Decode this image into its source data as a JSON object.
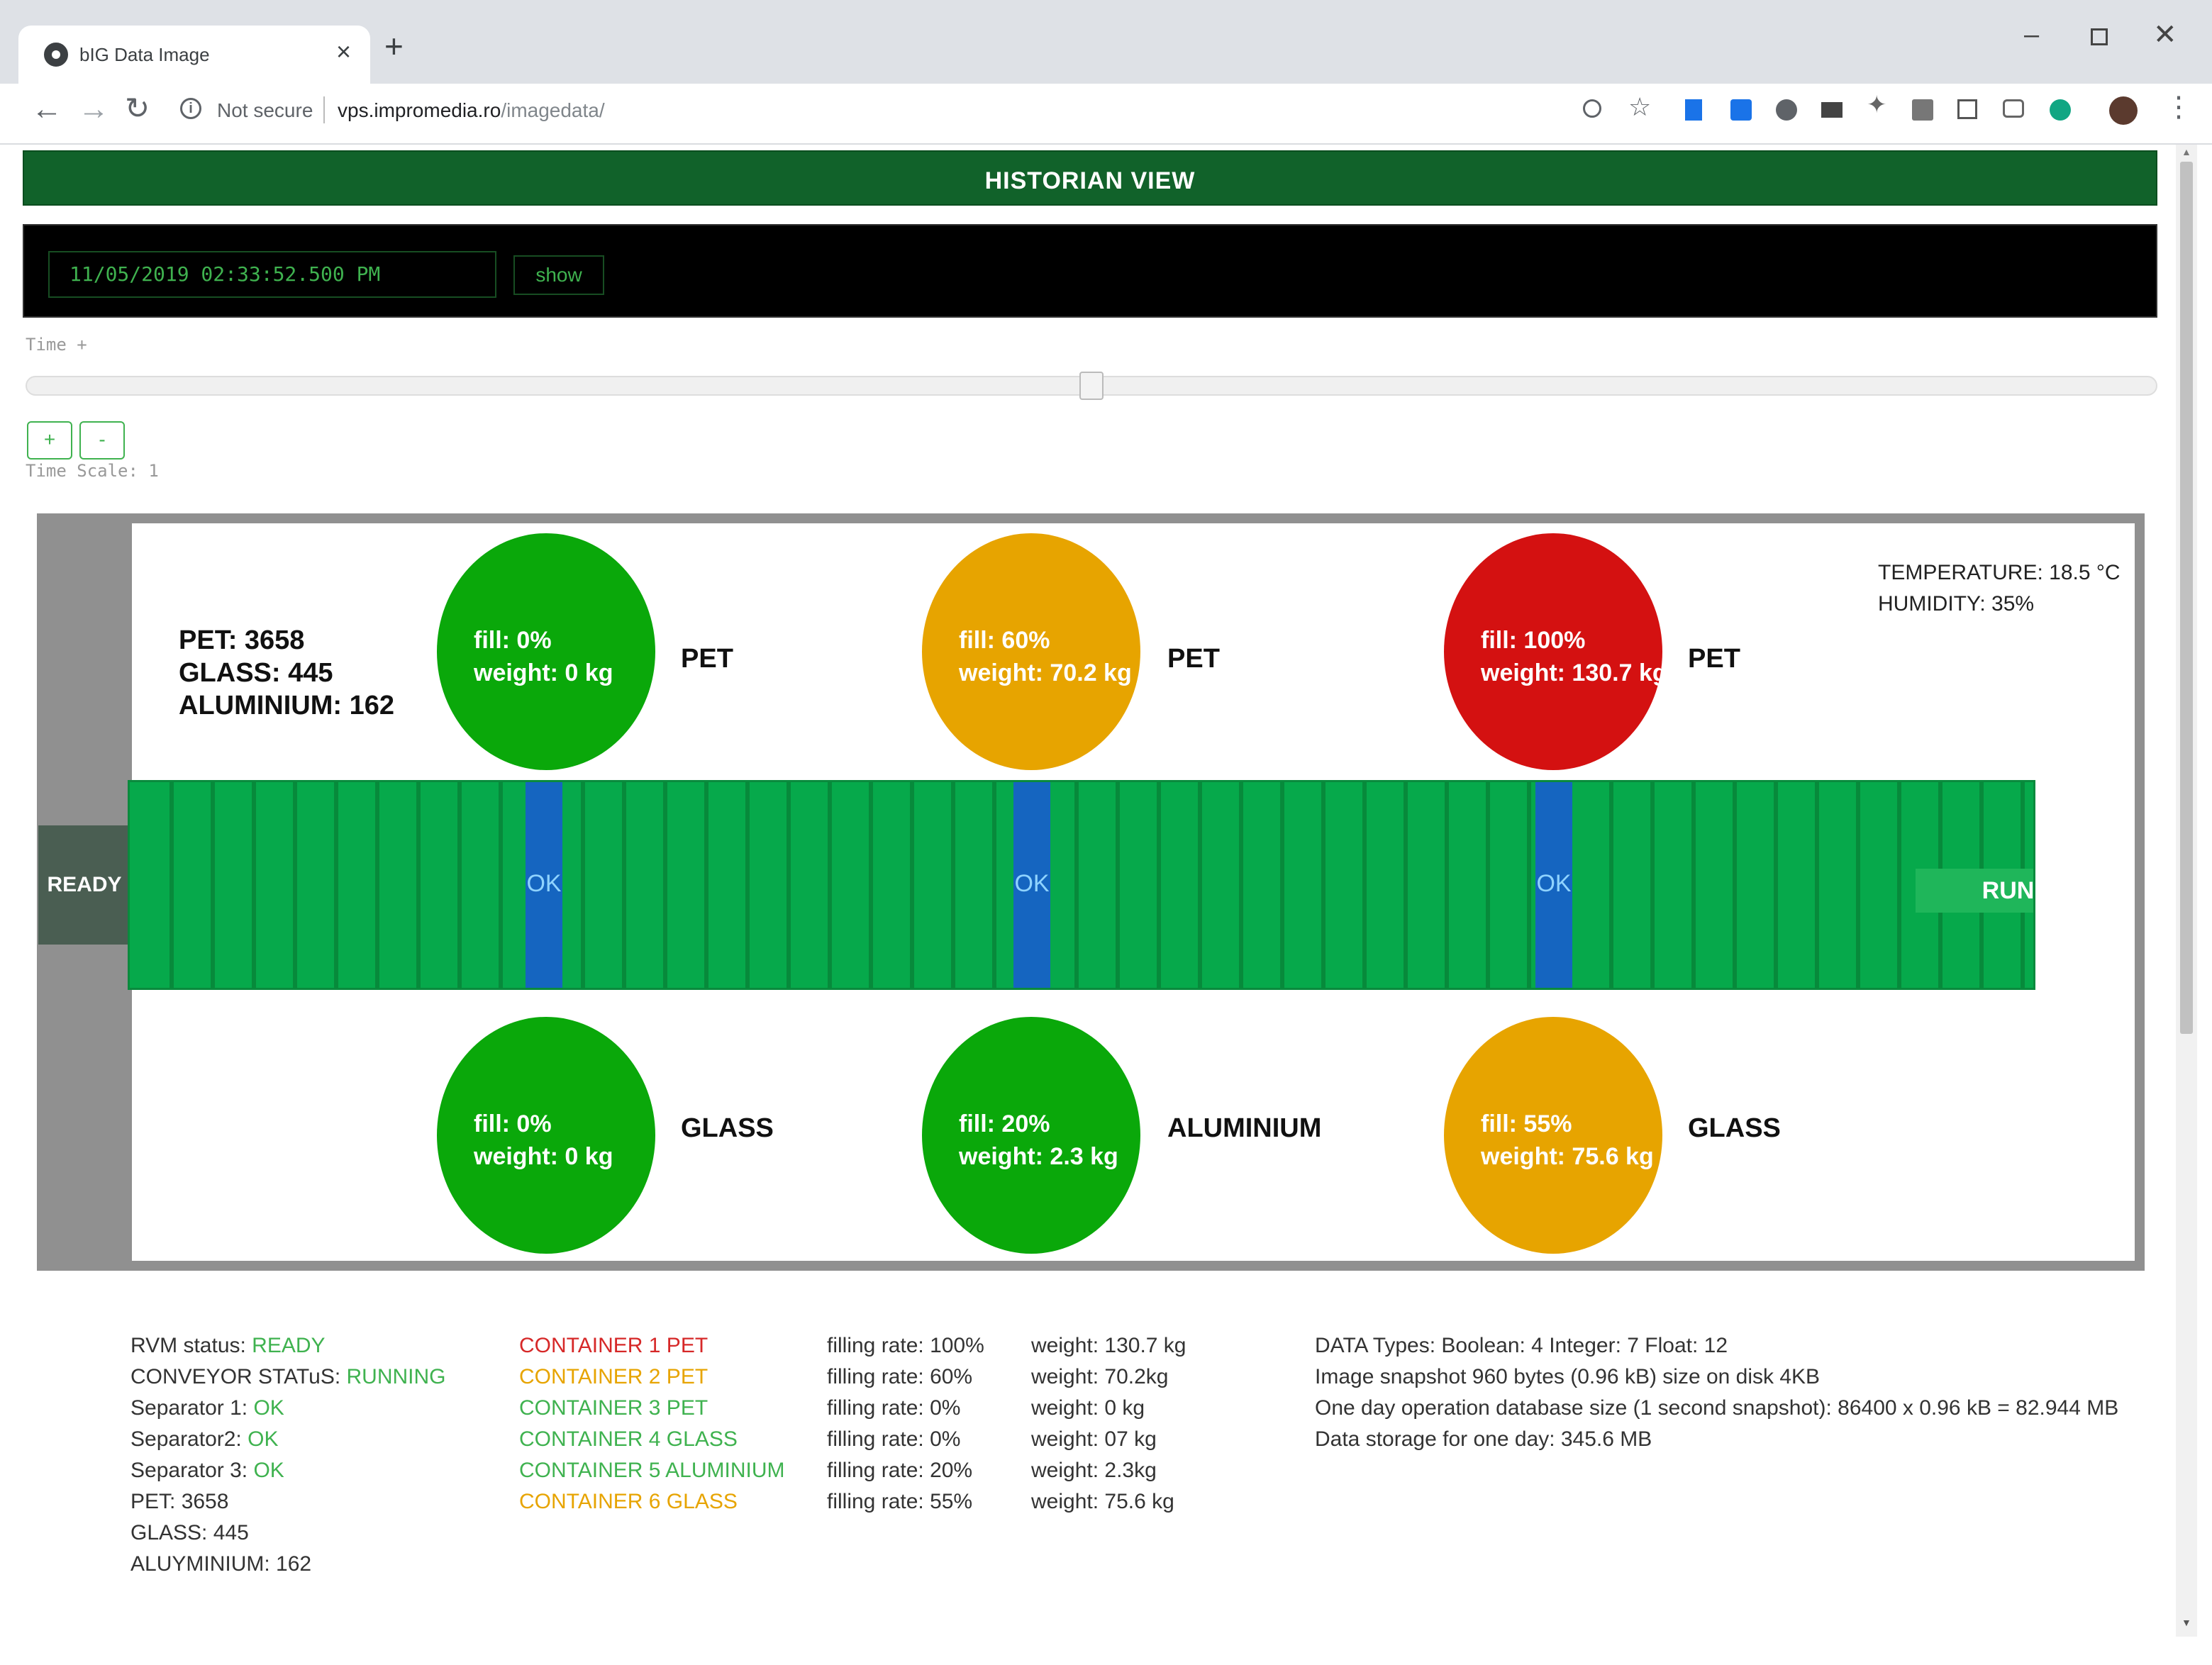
{
  "browser": {
    "tab_title": "bIG Data Image",
    "tab_close": "×",
    "new_tab": "+",
    "security": "Not secure",
    "url_host": "vps.impromedia.ro",
    "url_path": "/imagedata/"
  },
  "header": {
    "title": "HISTORIAN VIEW"
  },
  "controls": {
    "datetime": "11/05/2019 02:33:52.500 PM",
    "show_label": "show",
    "time_label": "Time +",
    "slider_position": 0.5,
    "plus_label": "+",
    "minus_label": "-",
    "time_scale": "Time Scale: 1"
  },
  "process": {
    "ready_label": "READY",
    "running_label": "RUNNING",
    "counts": [
      "PET: 3658",
      "GLASS: 445",
      "ALUMINIUM: 162"
    ],
    "environment": [
      "TEMPERATURE: 18.5 °C",
      "HUMIDITY: 35%"
    ],
    "separators": [
      "OK",
      "OK",
      "OK"
    ],
    "containers_top": [
      {
        "fill": "fill: 0%",
        "weight": "weight: 0 kg",
        "label": "PET",
        "color": "#0aa80a"
      },
      {
        "fill": "fill: 60%",
        "weight": "weight: 70.2 kg",
        "label": "PET",
        "color": "#e7a400"
      },
      {
        "fill": "fill: 100%",
        "weight": "weight: 130.7 kg",
        "label": "PET",
        "color": "#d41111"
      }
    ],
    "containers_bottom": [
      {
        "fill": "fill: 0%",
        "weight": "weight: 0 kg",
        "label": "GLASS",
        "color": "#0aa80a"
      },
      {
        "fill": "fill: 20%",
        "weight": "weight: 2.3 kg",
        "label": "ALUMINIUM",
        "color": "#0aa80a"
      },
      {
        "fill": "fill: 55%",
        "weight": "weight: 75.6 kg",
        "label": "GLASS",
        "color": "#e7a400"
      }
    ]
  },
  "legend": {
    "status": [
      {
        "label": "RVM status: ",
        "value": "READY"
      },
      {
        "label": "CONVEYOR STATuS: ",
        "value": "RUNNING"
      },
      {
        "label": "Separator 1: ",
        "value": "OK"
      },
      {
        "label": "Separator2: ",
        "value": "OK"
      },
      {
        "label": "Separator 3: ",
        "value": "OK"
      },
      {
        "label": "PET:  3658",
        "value": ""
      },
      {
        "label": "GLASS: 445",
        "value": ""
      },
      {
        "label": "ALUYMINIUM: 162",
        "value": ""
      }
    ],
    "containers": [
      {
        "text": "CONTAINER 1 PET",
        "color": "#d62828"
      },
      {
        "text": "CONTAINER 2 PET",
        "color": "#e7a400"
      },
      {
        "text": "CONTAINER 3 PET",
        "color": "#3fb24f"
      },
      {
        "text": "CONTAINER 4 GLASS",
        "color": "#3fb24f"
      },
      {
        "text": "CONTAINER 5 ALUMINIUM",
        "color": "#3fb24f"
      },
      {
        "text": "CONTAINER 6 GLASS",
        "color": "#e7a400"
      }
    ],
    "rates": [
      "filling rate: 100%",
      "filling rate: 60%",
      "filling rate: 0%",
      "filling rate: 0%",
      "filling rate: 20%",
      "filling rate: 55%"
    ],
    "weights": [
      "weight: 130.7 kg",
      "weight: 70.2kg",
      "weight: 0 kg",
      "weight: 07 kg",
      "weight: 2.3kg",
      "weight: 75.6 kg"
    ],
    "info": [
      "DATA Types: Boolean: 4 Integer: 7 Float: 12",
      "Image snapshot 960 bytes (0.96 kB) size on disk 4KB",
      "One day  operation database size (1 second snapshot): 86400 x 0.96 kB = 82.944 MB",
      "Data storage for one day: 345.6 MB"
    ]
  },
  "colors": {
    "accent": "#3fb24f",
    "header": "#11622a",
    "conveyor": "#06a94b",
    "separator": "#1565c0"
  }
}
